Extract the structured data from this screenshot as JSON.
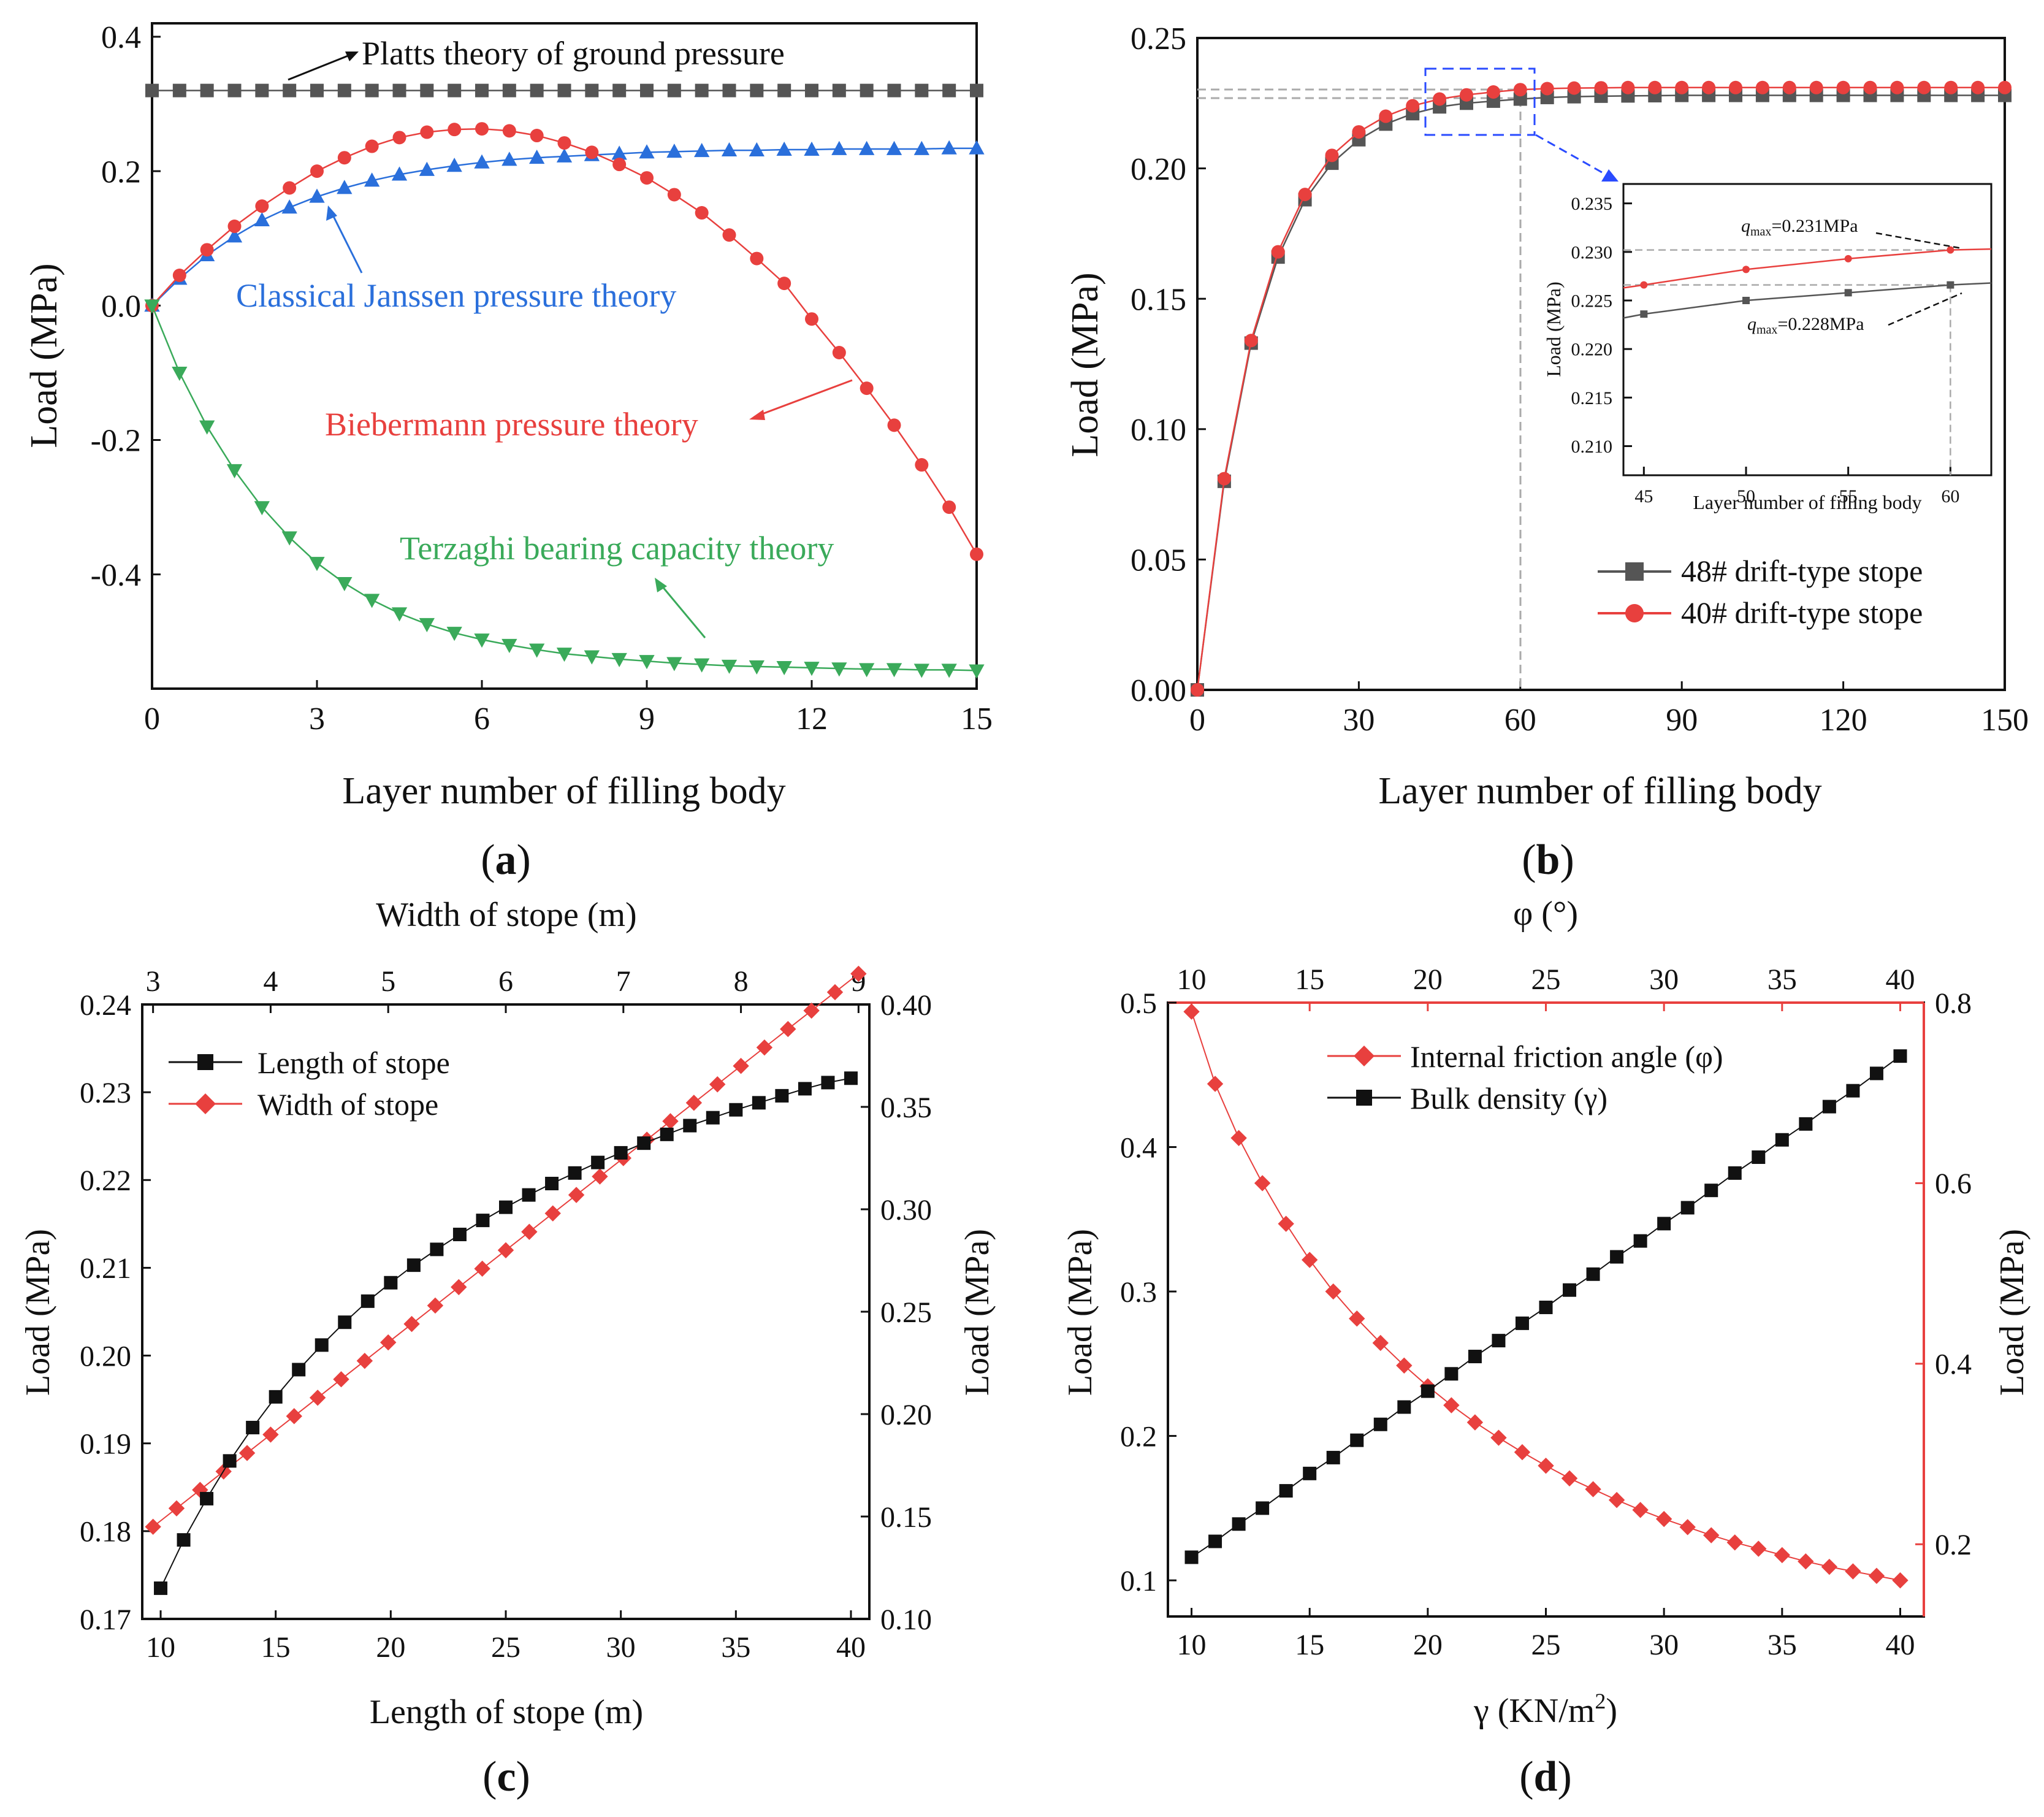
{
  "chart_data": [
    {
      "id": "a",
      "type": "line",
      "panel_label": "a",
      "xlabel": "Layer number of filling body",
      "ylabel": "Load (MPa)",
      "xlim": [
        0,
        15
      ],
      "ylim": [
        -0.57,
        0.42
      ],
      "xticks": [
        "0",
        "3",
        "6",
        "9",
        "12",
        "15"
      ],
      "yticks": [
        "0.4",
        "0.2",
        "0.0",
        "-0.2",
        "-0.4"
      ],
      "series": [
        {
          "name": "Platts theory of ground pressure",
          "color": "#555555",
          "marker": "square",
          "x": [
            0,
            0.5,
            1,
            1.5,
            2,
            2.5,
            3,
            3.5,
            4,
            4.5,
            5,
            5.5,
            6,
            6.5,
            7,
            7.5,
            8,
            8.5,
            9,
            9.5,
            10,
            10.5,
            11,
            11.5,
            12,
            12.5,
            13,
            13.5,
            14,
            14.5,
            15
          ],
          "y": [
            0.32,
            0.32,
            0.32,
            0.32,
            0.32,
            0.32,
            0.32,
            0.32,
            0.32,
            0.32,
            0.32,
            0.32,
            0.32,
            0.32,
            0.32,
            0.32,
            0.32,
            0.32,
            0.32,
            0.32,
            0.32,
            0.32,
            0.32,
            0.32,
            0.32,
            0.32,
            0.32,
            0.32,
            0.32,
            0.32,
            0.32
          ]
        },
        {
          "name": "Classical Janssen pressure theory",
          "color": "#2a6fdb",
          "marker": "triangle-up",
          "x": [
            0,
            0.5,
            1,
            1.5,
            2,
            2.5,
            3,
            3.5,
            4,
            4.5,
            5,
            5.5,
            6,
            6.5,
            7,
            7.5,
            8,
            8.5,
            9,
            9.5,
            10,
            10.5,
            11,
            11.5,
            12,
            12.5,
            13,
            13.5,
            14,
            14.5,
            15
          ],
          "y": [
            0,
            0.04,
            0.075,
            0.103,
            0.127,
            0.146,
            0.162,
            0.175,
            0.186,
            0.195,
            0.202,
            0.208,
            0.213,
            0.217,
            0.22,
            0.222,
            0.224,
            0.226,
            0.228,
            0.229,
            0.23,
            0.231,
            0.231,
            0.232,
            0.232,
            0.233,
            0.233,
            0.233,
            0.233,
            0.234,
            0.234
          ]
        },
        {
          "name": "Biebermann pressure theory",
          "color": "#e8403e",
          "marker": "circle",
          "x": [
            0,
            0.5,
            1,
            1.5,
            2,
            2.5,
            3,
            3.5,
            4,
            4.5,
            5,
            5.5,
            6,
            6.5,
            7,
            7.5,
            8,
            8.5,
            9,
            9.5,
            10,
            10.5,
            11,
            11.5,
            12,
            12.5,
            13,
            13.5,
            14,
            14.5,
            15
          ],
          "y": [
            0,
            0.045,
            0.083,
            0.118,
            0.148,
            0.175,
            0.2,
            0.22,
            0.237,
            0.25,
            0.258,
            0.262,
            0.263,
            0.26,
            0.253,
            0.242,
            0.228,
            0.21,
            0.19,
            0.165,
            0.138,
            0.105,
            0.07,
            0.033,
            -0.02,
            -0.07,
            -0.123,
            -0.178,
            -0.237,
            -0.3,
            -0.37
          ]
        },
        {
          "name": "Terzaghi bearing capacity theory",
          "color": "#3aaa5a",
          "marker": "triangle-down",
          "x": [
            0,
            0.5,
            1,
            1.5,
            2,
            2.5,
            3,
            3.5,
            4,
            4.5,
            5,
            5.5,
            6,
            6.5,
            7,
            7.5,
            8,
            8.5,
            9,
            9.5,
            10,
            10.5,
            11,
            11.5,
            12,
            12.5,
            13,
            13.5,
            14,
            14.5,
            15
          ],
          "y": [
            0,
            -0.1,
            -0.18,
            -0.245,
            -0.3,
            -0.345,
            -0.383,
            -0.413,
            -0.438,
            -0.458,
            -0.474,
            -0.487,
            -0.497,
            -0.505,
            -0.512,
            -0.518,
            -0.522,
            -0.526,
            -0.529,
            -0.532,
            -0.534,
            -0.536,
            -0.537,
            -0.538,
            -0.539,
            -0.54,
            -0.541,
            -0.541,
            -0.542,
            -0.542,
            -0.543
          ]
        }
      ],
      "annotations": [
        {
          "text": "Platts theory of ground pressure",
          "color": "#111111"
        },
        {
          "text": "Classical Janssen pressure theory",
          "color": "#2a6fdb"
        },
        {
          "text": "Biebermann pressure theory",
          "color": "#e8403e"
        },
        {
          "text": "Terzaghi bearing capacity theory",
          "color": "#3aaa5a"
        }
      ]
    },
    {
      "id": "b",
      "type": "line",
      "panel_label": "b",
      "xlabel": "Layer number of filling body",
      "ylabel": "Load (MPa)",
      "xlim": [
        0,
        150
      ],
      "ylim": [
        0,
        0.25
      ],
      "xticks": [
        "0",
        "30",
        "60",
        "90",
        "120",
        "150"
      ],
      "yticks": [
        "0.00",
        "0.05",
        "0.10",
        "0.15",
        "0.20",
        "0.25"
      ],
      "legend_position": "bottom-right",
      "series": [
        {
          "name": "48# drift-type stope",
          "color": "#555555",
          "marker": "square",
          "x": [
            0,
            5,
            10,
            15,
            20,
            25,
            30,
            35,
            40,
            45,
            50,
            55,
            60,
            65,
            70,
            75,
            80,
            85,
            90,
            95,
            100,
            105,
            110,
            115,
            120,
            125,
            130,
            135,
            140,
            145,
            150
          ],
          "y": [
            0,
            0.08,
            0.133,
            0.166,
            0.188,
            0.202,
            0.211,
            0.217,
            0.221,
            0.2236,
            0.225,
            0.2258,
            0.2266,
            0.2272,
            0.2275,
            0.2277,
            0.2278,
            0.2279,
            0.228,
            0.228,
            0.228,
            0.228,
            0.228,
            0.228,
            0.228,
            0.228,
            0.228,
            0.228,
            0.228,
            0.228,
            0.228
          ]
        },
        {
          "name": "40# drift-type stope",
          "color": "#e8403e",
          "marker": "circle",
          "x": [
            0,
            5,
            10,
            15,
            20,
            25,
            30,
            35,
            40,
            45,
            50,
            55,
            60,
            65,
            70,
            75,
            80,
            85,
            90,
            95,
            100,
            105,
            110,
            115,
            120,
            125,
            130,
            135,
            140,
            145,
            150
          ],
          "y": [
            0,
            0.081,
            0.134,
            0.168,
            0.19,
            0.205,
            0.214,
            0.22,
            0.224,
            0.2266,
            0.2282,
            0.2293,
            0.2302,
            0.2306,
            0.2308,
            0.2309,
            0.231,
            0.231,
            0.231,
            0.231,
            0.231,
            0.231,
            0.231,
            0.231,
            0.231,
            0.231,
            0.231,
            0.231,
            0.231,
            0.231,
            0.231
          ]
        }
      ],
      "inset": {
        "xlabel": "Layer number of filling body",
        "ylabel": "Load (MPa)",
        "xlim": [
          44,
          62
        ],
        "ylim": [
          0.207,
          0.237
        ],
        "xticks": [
          "45",
          "50",
          "55",
          "60"
        ],
        "yticks": [
          "0.210",
          "0.215",
          "0.220",
          "0.225",
          "0.230",
          "0.235"
        ],
        "annotation_max_40": {
          "prefix": "q",
          "sub": "max",
          "value": "=0.231MPa"
        },
        "annotation_max_48": {
          "prefix": "q",
          "sub": "max",
          "value": "=0.228MPa"
        },
        "series": [
          {
            "name": "48# drift-type stope",
            "color": "#555555",
            "x": [
              44,
              45,
              50,
              55,
              60,
              62
            ],
            "y": [
              0.2232,
              0.2236,
              0.225,
              0.2258,
              0.2266,
              0.2268
            ]
          },
          {
            "name": "40# drift-type stope",
            "color": "#e8403e",
            "x": [
              44,
              45,
              50,
              55,
              60,
              62
            ],
            "y": [
              0.2263,
              0.2266,
              0.2282,
              0.2293,
              0.2302,
              0.2303
            ]
          }
        ]
      }
    },
    {
      "id": "c",
      "type": "line",
      "panel_label": "c",
      "xlabel": "Length of stope (m)",
      "ylabel": "Load (MPa)",
      "ylabel_right": "Load (MPa)",
      "xlabel_top": "Width of stope (m)",
      "xlim": [
        9.2,
        40.8
      ],
      "ylim": [
        0.17,
        0.24
      ],
      "ylim_right": [
        0.1,
        0.4
      ],
      "xlim_top": [
        2.908,
        9.092
      ],
      "xticks": [
        "10",
        "15",
        "20",
        "25",
        "30",
        "35",
        "40"
      ],
      "xticks_top": [
        "3",
        "4",
        "5",
        "6",
        "7",
        "8",
        "9"
      ],
      "yticks": [
        "0.17",
        "0.18",
        "0.19",
        "0.20",
        "0.21",
        "0.22",
        "0.23",
        "0.24"
      ],
      "yticks_right": [
        "0.10",
        "0.15",
        "0.20",
        "0.25",
        "0.30",
        "0.35",
        "0.40"
      ],
      "legend_position": "top-left",
      "series": [
        {
          "name": "Length of stope",
          "color": "#111111",
          "marker": "square",
          "axis": "bottom-left",
          "x": [
            10,
            11,
            12,
            13,
            14,
            15,
            16,
            17,
            18,
            19,
            20,
            21,
            22,
            23,
            24,
            25,
            26,
            27,
            28,
            29,
            30,
            31,
            32,
            33,
            34,
            35,
            36,
            37,
            38,
            39,
            40
          ],
          "y": [
            0.1735,
            0.179,
            0.1837,
            0.188,
            0.1918,
            0.1953,
            0.1984,
            0.2012,
            0.2038,
            0.2062,
            0.2083,
            0.2103,
            0.2121,
            0.2138,
            0.2154,
            0.2169,
            0.2183,
            0.2196,
            0.2208,
            0.222,
            0.2231,
            0.2242,
            0.2252,
            0.2262,
            0.2271,
            0.228,
            0.2288,
            0.2296,
            0.2304,
            0.2311,
            0.2316
          ]
        },
        {
          "name": "Width of stope",
          "color": "#e8403e",
          "marker": "diamond",
          "axis": "top-right",
          "x": [
            3,
            3.2,
            3.4,
            3.6,
            3.8,
            4,
            4.2,
            4.4,
            4.6,
            4.8,
            5,
            5.2,
            5.4,
            5.6,
            5.8,
            6,
            6.2,
            6.4,
            6.6,
            6.8,
            7,
            7.2,
            7.4,
            7.6,
            7.8,
            8,
            8.2,
            8.4,
            8.6,
            8.8,
            9
          ],
          "y": [
            0.145,
            0.154,
            0.163,
            0.172,
            0.181,
            0.19,
            0.199,
            0.208,
            0.217,
            0.226,
            0.235,
            0.244,
            0.253,
            0.262,
            0.271,
            0.28,
            0.289,
            0.298,
            0.307,
            0.316,
            0.325,
            0.334,
            0.343,
            0.352,
            0.361,
            0.37,
            0.379,
            0.388,
            0.397,
            0.406,
            0.415
          ]
        }
      ]
    },
    {
      "id": "d",
      "type": "line",
      "panel_label": "d",
      "xlabel": "γ (KN/m",
      "xlabel_sup": "2",
      "xlabel_end": ")",
      "ylabel": "Load (MPa)",
      "ylabel_right": "Load (MPa)",
      "xlabel_top": "φ (°)",
      "xlim": [
        9,
        41
      ],
      "ylim": [
        0.075,
        0.5
      ],
      "ylim_right": [
        0.12,
        0.8
      ],
      "xlim_top": [
        9,
        41
      ],
      "xticks": [
        "10",
        "15",
        "20",
        "25",
        "30",
        "35",
        "40"
      ],
      "xticks_top": [
        "10",
        "15",
        "20",
        "25",
        "30",
        "35",
        "40"
      ],
      "yticks": [
        "0.1",
        "0.2",
        "0.3",
        "0.4",
        "0.5"
      ],
      "yticks_right": [
        "0.2",
        "0.4",
        "0.6",
        "0.8"
      ],
      "legend_position": "top-center",
      "series": [
        {
          "name": "Internal friction angle (φ)",
          "color": "#e8403e",
          "marker": "diamond",
          "axis": "top-right",
          "x": [
            10,
            11,
            12,
            13,
            14,
            15,
            16,
            17,
            18,
            19,
            20,
            21,
            22,
            23,
            24,
            25,
            26,
            27,
            28,
            29,
            30,
            31,
            32,
            33,
            34,
            35,
            36,
            37,
            38,
            39,
            40
          ],
          "y": [
            0.79,
            0.71,
            0.65,
            0.6,
            0.555,
            0.515,
            0.48,
            0.45,
            0.423,
            0.398,
            0.375,
            0.354,
            0.335,
            0.318,
            0.302,
            0.287,
            0.273,
            0.261,
            0.249,
            0.238,
            0.228,
            0.219,
            0.21,
            0.202,
            0.195,
            0.188,
            0.181,
            0.175,
            0.17,
            0.165,
            0.16
          ]
        },
        {
          "name": "Bulk density (γ)",
          "color": "#111111",
          "marker": "square",
          "axis": "bottom-left",
          "x": [
            10,
            11,
            12,
            13,
            14,
            15,
            16,
            17,
            18,
            19,
            20,
            21,
            22,
            23,
            24,
            25,
            26,
            27,
            28,
            29,
            30,
            31,
            32,
            33,
            34,
            35,
            36,
            37,
            38,
            39,
            40
          ],
          "y": [
            0.116,
            0.127,
            0.139,
            0.15,
            0.162,
            0.174,
            0.185,
            0.197,
            0.208,
            0.22,
            0.231,
            0.243,
            0.255,
            0.266,
            0.278,
            0.289,
            0.301,
            0.312,
            0.324,
            0.335,
            0.347,
            0.358,
            0.37,
            0.382,
            0.393,
            0.405,
            0.416,
            0.428,
            0.439,
            0.451,
            0.463
          ]
        }
      ]
    }
  ]
}
